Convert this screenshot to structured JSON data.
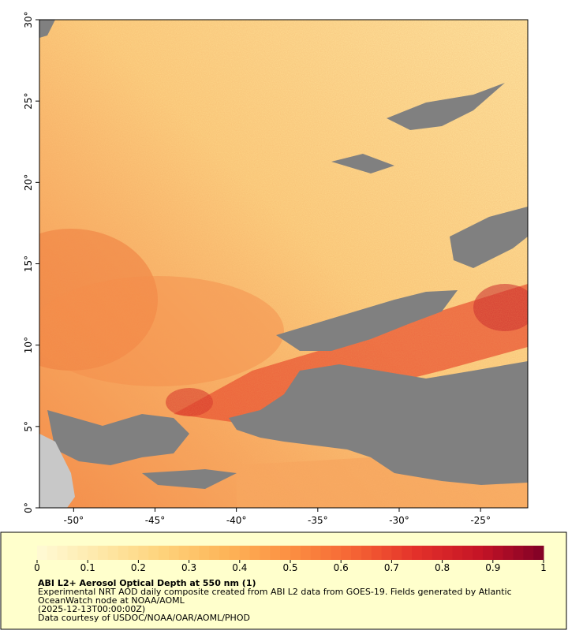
{
  "map": {
    "xlim": [
      -52.1,
      -22.1
    ],
    "ylim": [
      0,
      30
    ],
    "xticks": [
      {
        "value": -50,
        "label": "-50°"
      },
      {
        "value": -45,
        "label": "-45°"
      },
      {
        "value": -40,
        "label": "-40°"
      },
      {
        "value": -35,
        "label": "-35°"
      },
      {
        "value": -30,
        "label": "-30°"
      },
      {
        "value": -25,
        "label": "-25°"
      }
    ],
    "yticks": [
      {
        "value": 0,
        "label": "0°"
      },
      {
        "value": 5,
        "label": "5°"
      },
      {
        "value": 10,
        "label": "10°"
      },
      {
        "value": 15,
        "label": "15°"
      },
      {
        "value": 20,
        "label": "20°"
      },
      {
        "value": 25,
        "label": "25°"
      },
      {
        "value": 30,
        "label": "30°"
      }
    ]
  },
  "colorbar": {
    "lim": [
      0,
      1
    ],
    "ticks": [
      0,
      0.1,
      0.2,
      0.3,
      0.4,
      0.5,
      0.6,
      0.7,
      0.8,
      0.9,
      1
    ],
    "colormap": [
      "#fffbd6",
      "#fee8a8",
      "#fed27a",
      "#fdb458",
      "#fc8f42",
      "#f56434",
      "#e3302a",
      "#c51426",
      "#800026"
    ],
    "steps": 50
  },
  "caption": {
    "title": "ABI L2+ Aerosol Optical Depth at 550 nm (1)",
    "lines": [
      "Experimental NRT AOD daily composite created from ABI L2 data from GOES-19. Fields generated by Atlantic",
      "OceanWatch node at NOAA/AOML",
      "(2025-12-13T00:00:00Z)",
      "Data courtesy of USDOC/NOAA/OAR/AOML/PHOD"
    ]
  }
}
